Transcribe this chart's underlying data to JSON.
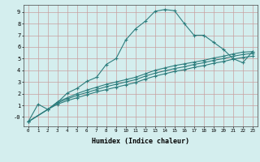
{
  "xlabel": "Humidex (Indice chaleur)",
  "bg_color": "#d4eeee",
  "line_color": "#2d7d7d",
  "grid_color": "#c8a0a0",
  "xlim": [
    -0.5,
    23.5
  ],
  "ylim": [
    -0.8,
    9.6
  ],
  "xticks": [
    0,
    1,
    2,
    3,
    4,
    5,
    6,
    7,
    8,
    9,
    10,
    11,
    12,
    13,
    14,
    15,
    16,
    17,
    18,
    19,
    20,
    21,
    22,
    23
  ],
  "yticks": [
    0,
    1,
    2,
    3,
    4,
    5,
    6,
    7,
    8,
    9
  ],
  "ytick_labels": [
    "-0",
    "1",
    "2",
    "3",
    "4",
    "5",
    "6",
    "7",
    "8",
    "9"
  ],
  "line1_x": [
    0,
    1,
    2,
    3,
    4,
    5,
    6,
    7,
    8,
    9,
    10,
    11,
    12,
    13,
    14,
    15,
    16,
    17,
    18,
    19,
    20,
    21,
    22,
    23
  ],
  "line1_y": [
    -0.4,
    1.1,
    0.65,
    1.25,
    2.05,
    2.45,
    3.05,
    3.4,
    4.5,
    5.0,
    6.6,
    7.55,
    8.2,
    9.05,
    9.2,
    9.1,
    8.0,
    7.0,
    7.0,
    6.4,
    5.8,
    5.0,
    4.65,
    5.6
  ],
  "line2_x": [
    0,
    2,
    3,
    4,
    5,
    6,
    7,
    8,
    9,
    10,
    11,
    12,
    13,
    14,
    15,
    16,
    17,
    18,
    19,
    20,
    21,
    22,
    23
  ],
  "line2_y": [
    -0.4,
    0.65,
    1.3,
    1.65,
    2.0,
    2.3,
    2.55,
    2.8,
    3.0,
    3.2,
    3.4,
    3.7,
    4.0,
    4.2,
    4.4,
    4.55,
    4.7,
    4.85,
    5.05,
    5.2,
    5.4,
    5.55,
    5.6
  ],
  "line3_x": [
    0,
    2,
    3,
    4,
    5,
    6,
    7,
    8,
    9,
    10,
    11,
    12,
    13,
    14,
    15,
    16,
    17,
    18,
    19,
    20,
    21,
    22,
    23
  ],
  "line3_y": [
    -0.4,
    0.65,
    1.2,
    1.55,
    1.85,
    2.1,
    2.35,
    2.6,
    2.8,
    3.0,
    3.2,
    3.5,
    3.75,
    3.95,
    4.15,
    4.3,
    4.5,
    4.65,
    4.85,
    5.0,
    5.2,
    5.35,
    5.45
  ],
  "line4_x": [
    0,
    2,
    3,
    4,
    5,
    6,
    7,
    8,
    9,
    10,
    11,
    12,
    13,
    14,
    15,
    16,
    17,
    18,
    19,
    20,
    21,
    22,
    23
  ],
  "line4_y": [
    -0.4,
    0.65,
    1.1,
    1.4,
    1.65,
    1.9,
    2.15,
    2.35,
    2.55,
    2.75,
    2.95,
    3.25,
    3.5,
    3.7,
    3.9,
    4.05,
    4.25,
    4.4,
    4.6,
    4.75,
    4.95,
    5.1,
    5.2
  ]
}
